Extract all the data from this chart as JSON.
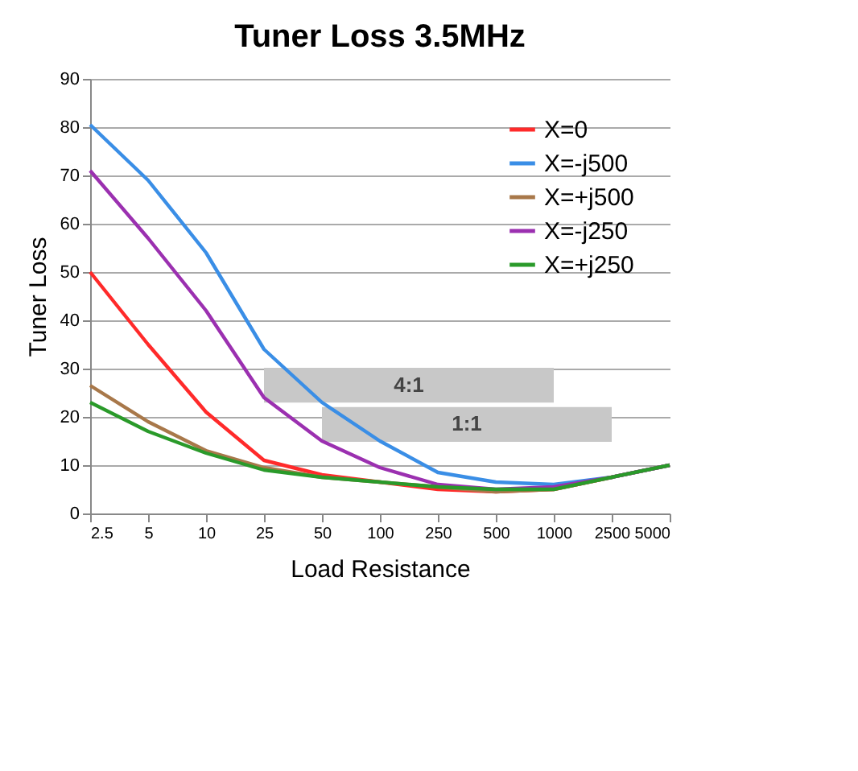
{
  "chart_data": {
    "type": "line",
    "title": "Tuner Loss 3.5MHz",
    "xlabel": "Load Resistance",
    "ylabel": "Tuner Loss",
    "categories": [
      "2.5",
      "5",
      "10",
      "25",
      "50",
      "100",
      "250",
      "500",
      "1000",
      "2500",
      "5000"
    ],
    "series": [
      {
        "name": "X=0",
        "color": "#ff2a2a",
        "values": [
          50,
          35,
          21,
          11,
          8,
          6.5,
          5,
          4.5,
          5,
          7.5,
          10
        ]
      },
      {
        "name": "X=-j500",
        "color": "#3a8ee6",
        "values": [
          80.5,
          69,
          54,
          34,
          23,
          15,
          8.5,
          6.5,
          6,
          7.5,
          10
        ]
      },
      {
        "name": "X=+j500",
        "color": "#a8784a",
        "values": [
          26.5,
          19,
          13,
          9.5,
          7.5,
          6.5,
          5.5,
          4.5,
          5,
          7.5,
          10
        ]
      },
      {
        "name": "X=-j250",
        "color": "#9b30b0",
        "values": [
          71,
          57,
          42,
          24,
          15,
          9.5,
          6,
          5,
          5.5,
          7.5,
          10
        ]
      },
      {
        "name": "X=+j250",
        "color": "#2a9a2a",
        "values": [
          23,
          17,
          12.5,
          9,
          7.5,
          6.5,
          5.5,
          5,
          5,
          7.5,
          10
        ]
      }
    ],
    "bands": [
      {
        "axis": "x",
        "from": "25",
        "to": "1000",
        "label": "4:1",
        "color": "#c8c8c8"
      },
      {
        "axis": "x",
        "from": "50",
        "to": "2500",
        "label": "1:1",
        "color": "#c8c8c8"
      }
    ],
    "ylim": [
      0,
      90
    ],
    "yticks": [
      0,
      10,
      20,
      30,
      40,
      50,
      60,
      70,
      80,
      90
    ],
    "grid": "y",
    "legend": "top right",
    "marker": "none",
    "line_style": "solid"
  }
}
